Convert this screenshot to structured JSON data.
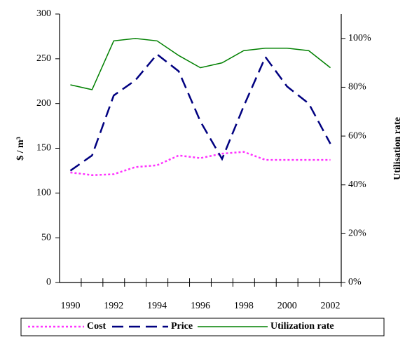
{
  "chart_data": {
    "type": "line",
    "ylabel": "$ / m³",
    "y2label": "Utilisation rate",
    "categories": [
      "1990",
      null,
      "1992",
      null,
      "1994",
      null,
      "1996",
      null,
      "1998",
      null,
      "2000",
      null,
      "2002"
    ],
    "ylim": [
      0,
      300
    ],
    "yticks": [
      0,
      50,
      100,
      150,
      200,
      250,
      300
    ],
    "y2lim": [
      0,
      110
    ],
    "y2ticks": [
      {
        "value": 0,
        "label": "0%"
      },
      {
        "value": 20,
        "label": "20%"
      },
      {
        "value": 40,
        "label": "40%"
      },
      {
        "value": 60,
        "label": "60%"
      },
      {
        "value": 80,
        "label": "80%"
      },
      {
        "value": 100,
        "label": "100%"
      }
    ],
    "legend": "bottom",
    "series": [
      {
        "name": "Cost",
        "color": "#ff33ff",
        "dash": "dotted",
        "values": [
          123,
          120,
          121,
          129,
          131,
          142,
          139,
          144,
          146,
          137,
          137,
          137,
          137
        ]
      },
      {
        "name": "Price",
        "color": "#000080",
        "dash": "dashed",
        "values": [
          125,
          142,
          209,
          226,
          255,
          236,
          180,
          138,
          197,
          252,
          219,
          200,
          155
        ]
      },
      {
        "name": "Utilization rate",
        "color": "#008000",
        "dash": "solid",
        "axis": "y2",
        "values": [
          81,
          79,
          99,
          100,
          99,
          93,
          88,
          90,
          95,
          96,
          96,
          95,
          88
        ]
      }
    ]
  }
}
